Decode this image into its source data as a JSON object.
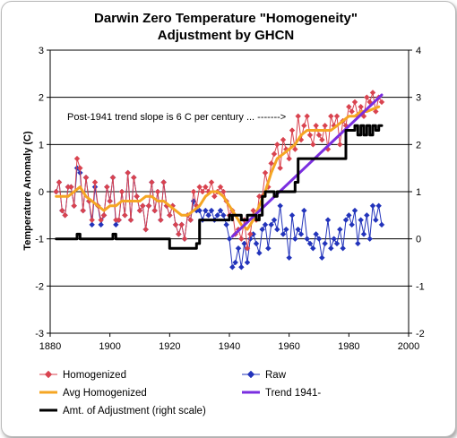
{
  "chart_data": {
    "type": "line",
    "title": [
      "Darwin Zero Temperature \"Homogeneity\"",
      "Adjustment by GHCN"
    ],
    "ylabel": "Temperature Anomaly (C)",
    "xlim": [
      1880,
      2000
    ],
    "ylim": [
      -3,
      3
    ],
    "y2lim": [
      -2,
      4
    ],
    "x_ticks": [
      "1880",
      "1900",
      "1920",
      "1940",
      "1960",
      "1980",
      "2000"
    ],
    "y_ticks": [
      "-3",
      "-2",
      "-1",
      "0",
      "1",
      "2",
      "3"
    ],
    "y2_ticks": [
      "-2",
      "-1",
      "0",
      "1",
      "2",
      "3",
      "4"
    ],
    "grid": "horizontal",
    "annotation": "Post-1941 trend slope is 6 C per century ... ------->",
    "series": [
      {
        "name": "Homogenized",
        "color": "#d9434f",
        "marker": "diamond",
        "x": [
          1882,
          1883,
          1884,
          1885,
          1886,
          1887,
          1888,
          1889,
          1890,
          1891,
          1892,
          1893,
          1894,
          1895,
          1896,
          1897,
          1898,
          1899,
          1900,
          1901,
          1902,
          1903,
          1904,
          1905,
          1906,
          1907,
          1908,
          1909,
          1910,
          1911,
          1912,
          1913,
          1914,
          1915,
          1916,
          1917,
          1918,
          1919,
          1920,
          1921,
          1922,
          1923,
          1924,
          1925,
          1926,
          1927,
          1928,
          1929,
          1930,
          1931,
          1932,
          1933,
          1934,
          1935,
          1936,
          1937,
          1938,
          1939,
          1940,
          1941,
          1942,
          1943,
          1944,
          1945,
          1946,
          1947,
          1948,
          1949,
          1950,
          1951,
          1952,
          1953,
          1954,
          1955,
          1956,
          1957,
          1958,
          1959,
          1960,
          1961,
          1962,
          1963,
          1964,
          1965,
          1966,
          1967,
          1968,
          1969,
          1970,
          1971,
          1972,
          1973,
          1974,
          1975,
          1976,
          1977,
          1978,
          1979,
          1980,
          1981,
          1982,
          1983,
          1984,
          1985,
          1986,
          1987,
          1988,
          1989,
          1990,
          1991
        ],
        "values": [
          0.0,
          0.2,
          -0.4,
          -0.5,
          0.1,
          0.1,
          -0.3,
          0.7,
          0.5,
          -0.4,
          0.3,
          -0.2,
          -0.6,
          0.2,
          -0.3,
          -0.6,
          -0.5,
          0.1,
          -0.2,
          0.3,
          -0.6,
          -0.6,
          0.0,
          -0.5,
          0.4,
          -0.6,
          0.3,
          -0.1,
          -0.4,
          -0.3,
          -0.8,
          -0.3,
          0.2,
          -0.4,
          0.0,
          -0.6,
          0.2,
          -0.3,
          -0.5,
          -0.3,
          -0.7,
          -0.9,
          -0.7,
          -1.0,
          -0.5,
          -0.6,
          0.0,
          -0.3,
          0.1,
          0.0,
          0.1,
          0.0,
          0.2,
          -0.1,
          0.0,
          0.1,
          0.0,
          -0.2,
          -0.5,
          -0.4,
          -0.9,
          -0.8,
          -1.0,
          -0.6,
          -1.2,
          -0.9,
          -0.4,
          -0.6,
          -0.1,
          -0.1,
          0.4,
          0.1,
          0.6,
          0.8,
          1.0,
          0.5,
          1.1,
          0.9,
          0.7,
          1.3,
          0.9,
          1.6,
          1.1,
          1.4,
          1.6,
          1.2,
          1.0,
          1.4,
          1.2,
          1.1,
          1.4,
          0.9,
          1.6,
          1.4,
          1.6,
          1.0,
          1.5,
          1.4,
          1.8,
          1.7,
          1.9,
          1.6,
          1.8,
          1.6,
          2.0,
          1.9,
          2.1,
          1.7,
          2.0,
          1.9
        ]
      },
      {
        "name": "Raw",
        "color": "#2233bb",
        "marker": "diamond",
        "x": [
          1882,
          1883,
          1884,
          1885,
          1886,
          1887,
          1888,
          1889,
          1890,
          1891,
          1892,
          1893,
          1894,
          1895,
          1896,
          1897,
          1898,
          1899,
          1900,
          1901,
          1902,
          1903,
          1904,
          1905,
          1906,
          1907,
          1908,
          1909,
          1910,
          1911,
          1912,
          1913,
          1914,
          1915,
          1916,
          1917,
          1918,
          1919,
          1920,
          1921,
          1922,
          1923,
          1924,
          1925,
          1926,
          1927,
          1928,
          1929,
          1930,
          1931,
          1932,
          1933,
          1934,
          1935,
          1936,
          1937,
          1938,
          1939,
          1940,
          1941,
          1942,
          1943,
          1944,
          1945,
          1946,
          1947,
          1948,
          1949,
          1950,
          1951,
          1952,
          1953,
          1954,
          1955,
          1956,
          1957,
          1958,
          1959,
          1960,
          1961,
          1962,
          1963,
          1964,
          1965,
          1966,
          1967,
          1968,
          1969,
          1970,
          1971,
          1972,
          1973,
          1974,
          1975,
          1976,
          1977,
          1978,
          1979,
          1980,
          1981,
          1982,
          1983,
          1984,
          1985,
          1986,
          1987,
          1988,
          1989,
          1990,
          1991
        ],
        "values": [
          0.0,
          0.2,
          -0.4,
          -0.5,
          0.1,
          0.1,
          -0.3,
          0.5,
          0.4,
          -0.4,
          0.3,
          -0.2,
          -0.7,
          0.1,
          -0.3,
          -0.7,
          -0.5,
          0.1,
          -0.2,
          0.3,
          -0.7,
          -0.6,
          0.0,
          -0.5,
          0.4,
          -0.6,
          0.3,
          -0.1,
          -0.4,
          -0.3,
          -0.8,
          -0.3,
          0.2,
          -0.4,
          0.0,
          -0.6,
          0.2,
          -0.3,
          -0.5,
          -0.3,
          -0.7,
          -0.9,
          -0.7,
          -1.0,
          -0.5,
          -0.6,
          -0.2,
          -0.4,
          -0.4,
          -0.6,
          -0.4,
          -0.5,
          -0.4,
          -0.6,
          -0.5,
          -0.4,
          -0.5,
          -0.7,
          -1.0,
          -1.6,
          -1.5,
          -1.2,
          -1.6,
          -1.1,
          -1.5,
          -1.0,
          -0.9,
          -1.1,
          -1.3,
          -0.8,
          -0.7,
          -1.2,
          -0.7,
          -0.6,
          -0.8,
          -0.3,
          -0.9,
          -0.8,
          -1.4,
          -0.5,
          -1.0,
          -0.8,
          -0.9,
          -0.4,
          -1.0,
          -1.1,
          -1.2,
          -0.9,
          -1.0,
          -1.4,
          -1.1,
          -0.6,
          -1.2,
          -1.0,
          -1.1,
          -0.8,
          -1.2,
          -0.6,
          -0.5,
          -0.7,
          -0.4,
          -1.1,
          -0.6,
          -0.9,
          -0.5,
          -1.0,
          -0.3,
          -0.6,
          -0.3,
          -0.7
        ]
      },
      {
        "name": "Avg Homogenized",
        "color": "#f5a623",
        "x": [
          1882,
          1884,
          1886,
          1888,
          1890,
          1892,
          1894,
          1896,
          1898,
          1900,
          1902,
          1904,
          1906,
          1908,
          1910,
          1912,
          1914,
          1916,
          1918,
          1920,
          1922,
          1924,
          1926,
          1928,
          1930,
          1932,
          1934,
          1936,
          1938,
          1940,
          1942,
          1944,
          1946,
          1948,
          1950,
          1952,
          1954,
          1956,
          1958,
          1960,
          1962,
          1964,
          1966,
          1968,
          1970,
          1972,
          1974,
          1976,
          1978,
          1980,
          1982,
          1984,
          1986,
          1988,
          1990
        ],
        "values": [
          -0.1,
          -0.1,
          -0.1,
          0.0,
          0.1,
          -0.1,
          -0.2,
          -0.3,
          -0.4,
          -0.3,
          -0.3,
          -0.2,
          -0.2,
          -0.2,
          -0.2,
          -0.1,
          -0.1,
          -0.2,
          -0.2,
          -0.3,
          -0.4,
          -0.5,
          -0.5,
          -0.4,
          -0.3,
          -0.1,
          0.0,
          0.0,
          -0.1,
          -0.3,
          -0.5,
          -0.7,
          -0.8,
          -0.6,
          -0.3,
          0.0,
          0.4,
          0.7,
          0.8,
          0.9,
          1.0,
          1.2,
          1.3,
          1.3,
          1.3,
          1.3,
          1.3,
          1.4,
          1.5,
          1.6,
          1.6,
          1.7,
          1.7,
          1.75,
          1.8
        ]
      },
      {
        "name": "Trend 1941-",
        "color": "#7a2ee0",
        "x": [
          1941,
          1991
        ],
        "values": [
          -0.95,
          2.05
        ]
      },
      {
        "name": "Amt. of Adjustment (right scale)",
        "color": "#000000",
        "axis": "right",
        "x": [
          1882,
          1889,
          1889,
          1890,
          1890,
          1901,
          1901,
          1902,
          1902,
          1920,
          1920,
          1924,
          1924,
          1929,
          1929,
          1930,
          1930,
          1940,
          1940,
          1941,
          1941,
          1941,
          1941,
          1944,
          1944,
          1946,
          1946,
          1949,
          1949,
          1950,
          1950,
          1951,
          1951,
          1952,
          1952,
          1955,
          1955,
          1956,
          1956,
          1962,
          1962,
          1963,
          1963,
          1970,
          1970,
          1978,
          1978,
          1979,
          1979,
          1982,
          1982,
          1983,
          1983,
          1984,
          1984,
          1985,
          1985,
          1986,
          1986,
          1987,
          1987,
          1988,
          1988,
          1989,
          1989,
          1990,
          1990,
          1991
        ],
        "values": [
          0.0,
          0.0,
          0.1,
          0.1,
          0.0,
          0.0,
          0.1,
          0.1,
          0.0,
          0.0,
          -0.2,
          -0.2,
          -0.2,
          -0.2,
          -0.1,
          -0.1,
          0.4,
          0.4,
          0.5,
          0.5,
          0.4,
          0.4,
          0.5,
          0.5,
          0.4,
          0.4,
          0.5,
          0.5,
          0.4,
          0.4,
          0.5,
          0.5,
          0.9,
          0.9,
          1.0,
          1.0,
          0.9,
          0.9,
          1.0,
          1.0,
          1.2,
          1.2,
          1.7,
          1.7,
          1.7,
          1.7,
          1.7,
          1.7,
          2.3,
          2.3,
          2.4,
          2.4,
          2.2,
          2.2,
          2.4,
          2.4,
          2.2,
          2.2,
          2.4,
          2.4,
          2.2,
          2.2,
          2.4,
          2.4,
          2.3,
          2.3,
          2.4,
          2.4
        ]
      }
    ]
  }
}
